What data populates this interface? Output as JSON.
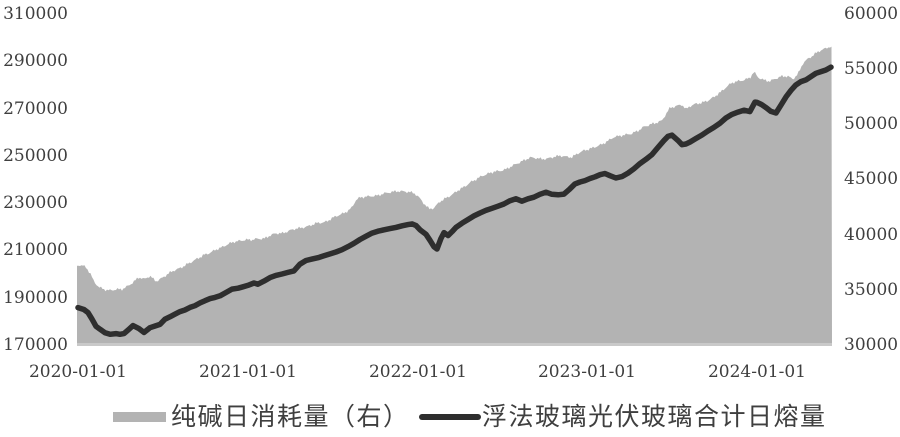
{
  "chart": {
    "background": "#ffffff",
    "area_color": "#b3b3b3",
    "line_color": "#2e2e2e",
    "text_color": "#3f3f3f",
    "baseline_color": "#c9c9c9"
  },
  "chart_data": {
    "type": "area",
    "subtype": "dual-axis area + line combo",
    "title": "",
    "grid": "off",
    "legend_position": "bottom",
    "x_axis": {
      "tick_labels": [
        "2020-01-01",
        "2021-01-01",
        "2022-01-01",
        "2023-01-01",
        "2024-01-01"
      ],
      "unit": "t = years since 2020-01-01, data span t=0 to t=4.44 (mid-2024)"
    },
    "y_left": {
      "min": 170000,
      "max": 310000,
      "step": 20000,
      "tick_labels": [
        "310000",
        "290000",
        "270000",
        "250000",
        "230000",
        "210000",
        "190000",
        "170000"
      ]
    },
    "y_right": {
      "min": 30000,
      "max": 60000,
      "step": 5000,
      "tick_labels": [
        "60000",
        "55000",
        "50000",
        "45000",
        "40000",
        "35000",
        "30000"
      ]
    },
    "legend": [
      {
        "label": "纯碱日消耗量（右）",
        "type": "area",
        "color": "#b3b3b3"
      },
      {
        "label": "浮法玻璃光伏玻璃合计日熔量",
        "type": "line",
        "color": "#2e2e2e"
      }
    ],
    "series": [
      {
        "name": "纯碱日消耗量（右）",
        "axis": "right",
        "type": "area",
        "points": [
          [
            -0.006,
            37100
          ],
          [
            0.024,
            37100
          ],
          [
            0.047,
            36900
          ],
          [
            0.071,
            36400
          ],
          [
            0.094,
            35600
          ],
          [
            0.124,
            35100
          ],
          [
            0.153,
            34900
          ],
          [
            0.189,
            34800
          ],
          [
            0.224,
            34900
          ],
          [
            0.259,
            34900
          ],
          [
            0.295,
            35200
          ],
          [
            0.33,
            35600
          ],
          [
            0.359,
            36000
          ],
          [
            0.389,
            35800
          ],
          [
            0.424,
            36100
          ],
          [
            0.459,
            35600
          ],
          [
            0.495,
            35900
          ],
          [
            0.53,
            36300
          ],
          [
            0.566,
            36600
          ],
          [
            0.601,
            36800
          ],
          [
            0.636,
            37100
          ],
          [
            0.672,
            37400
          ],
          [
            0.707,
            37700
          ],
          [
            0.742,
            38000
          ],
          [
            0.778,
            38200
          ],
          [
            0.813,
            38500
          ],
          [
            0.848,
            38700
          ],
          [
            0.884,
            39000
          ],
          [
            0.919,
            39200
          ],
          [
            0.954,
            39300
          ],
          [
            0.99,
            39400
          ],
          [
            1.025,
            39400
          ],
          [
            1.06,
            39500
          ],
          [
            1.096,
            39500
          ],
          [
            1.131,
            39800
          ],
          [
            1.166,
            40000
          ],
          [
            1.202,
            40000
          ],
          [
            1.237,
            40200
          ],
          [
            1.272,
            40400
          ],
          [
            1.308,
            40500
          ],
          [
            1.343,
            40600
          ],
          [
            1.378,
            40800
          ],
          [
            1.414,
            41000
          ],
          [
            1.449,
            41000
          ],
          [
            1.485,
            41300
          ],
          [
            1.52,
            41600
          ],
          [
            1.555,
            41800
          ],
          [
            1.591,
            42100
          ],
          [
            1.614,
            42400
          ],
          [
            1.638,
            43100
          ],
          [
            1.661,
            43300
          ],
          [
            1.697,
            43400
          ],
          [
            1.732,
            43450
          ],
          [
            1.767,
            43500
          ],
          [
            1.803,
            43700
          ],
          [
            1.838,
            43800
          ],
          [
            1.873,
            43900
          ],
          [
            1.909,
            43900
          ],
          [
            1.944,
            43850
          ],
          [
            1.979,
            43750
          ],
          [
            2.003,
            43450
          ],
          [
            2.038,
            42800
          ],
          [
            2.068,
            42300
          ],
          [
            2.097,
            42400
          ],
          [
            2.133,
            43000
          ],
          [
            2.168,
            43300
          ],
          [
            2.203,
            43600
          ],
          [
            2.239,
            44000
          ],
          [
            2.274,
            44300
          ],
          [
            2.309,
            44700
          ],
          [
            2.345,
            45000
          ],
          [
            2.38,
            45300
          ],
          [
            2.415,
            45500
          ],
          [
            2.451,
            45700
          ],
          [
            2.486,
            45750
          ],
          [
            2.521,
            45900
          ],
          [
            2.557,
            46200
          ],
          [
            2.592,
            46450
          ],
          [
            2.627,
            46700
          ],
          [
            2.663,
            46950
          ],
          [
            2.698,
            46900
          ],
          [
            2.733,
            46800
          ],
          [
            2.769,
            46850
          ],
          [
            2.804,
            47000
          ],
          [
            2.839,
            47100
          ],
          [
            2.875,
            47000
          ],
          [
            2.91,
            46950
          ],
          [
            2.945,
            47300
          ],
          [
            2.981,
            47550
          ],
          [
            3.016,
            47700
          ],
          [
            3.052,
            47900
          ],
          [
            3.087,
            48100
          ],
          [
            3.122,
            48400
          ],
          [
            3.158,
            48750
          ],
          [
            3.193,
            48850
          ],
          [
            3.228,
            48950
          ],
          [
            3.264,
            49050
          ],
          [
            3.299,
            49300
          ],
          [
            3.334,
            49650
          ],
          [
            3.37,
            49850
          ],
          [
            3.405,
            50000
          ],
          [
            3.44,
            50200
          ],
          [
            3.464,
            50800
          ],
          [
            3.487,
            51350
          ],
          [
            3.523,
            51500
          ],
          [
            3.558,
            51640
          ],
          [
            3.581,
            51200
          ],
          [
            3.605,
            51500
          ],
          [
            3.64,
            51700
          ],
          [
            3.676,
            51800
          ],
          [
            3.711,
            52000
          ],
          [
            3.746,
            52300
          ],
          [
            3.77,
            52600
          ],
          [
            3.782,
            52700
          ],
          [
            3.817,
            53200
          ],
          [
            3.852,
            53600
          ],
          [
            3.888,
            53750
          ],
          [
            3.923,
            53850
          ],
          [
            3.958,
            54050
          ],
          [
            3.982,
            54600
          ],
          [
            4.006,
            54100
          ],
          [
            4.041,
            53850
          ],
          [
            4.076,
            53750
          ],
          [
            4.112,
            54000
          ],
          [
            4.147,
            54200
          ],
          [
            4.182,
            54200
          ],
          [
            4.212,
            53950
          ],
          [
            4.241,
            54400
          ],
          [
            4.271,
            55400
          ],
          [
            4.3,
            55800
          ],
          [
            4.33,
            56100
          ],
          [
            4.359,
            56450
          ],
          [
            4.389,
            56650
          ],
          [
            4.418,
            56850
          ],
          [
            4.442,
            56950
          ]
        ]
      },
      {
        "name": "浮法玻璃光伏玻璃合计日熔量",
        "axis": "left",
        "type": "line",
        "points": [
          [
            0.0,
            185400
          ],
          [
            0.035,
            184600
          ],
          [
            0.059,
            183300
          ],
          [
            0.082,
            180600
          ],
          [
            0.106,
            177500
          ],
          [
            0.13,
            176200
          ],
          [
            0.159,
            174800
          ],
          [
            0.189,
            174100
          ],
          [
            0.224,
            174400
          ],
          [
            0.247,
            174100
          ],
          [
            0.271,
            174400
          ],
          [
            0.3,
            176200
          ],
          [
            0.324,
            177800
          ],
          [
            0.359,
            176500
          ],
          [
            0.389,
            174900
          ],
          [
            0.424,
            176900
          ],
          [
            0.454,
            177600
          ],
          [
            0.483,
            178300
          ],
          [
            0.512,
            180500
          ],
          [
            0.542,
            181500
          ],
          [
            0.571,
            182600
          ],
          [
            0.601,
            183700
          ],
          [
            0.63,
            184400
          ],
          [
            0.66,
            185500
          ],
          [
            0.689,
            186200
          ],
          [
            0.719,
            187400
          ],
          [
            0.748,
            188300
          ],
          [
            0.778,
            189200
          ],
          [
            0.807,
            189700
          ],
          [
            0.837,
            190400
          ],
          [
            0.872,
            191800
          ],
          [
            0.907,
            193200
          ],
          [
            0.943,
            193600
          ],
          [
            0.972,
            194200
          ],
          [
            1.0,
            194800
          ],
          [
            1.037,
            195800
          ],
          [
            1.06,
            195300
          ],
          [
            1.096,
            196600
          ],
          [
            1.131,
            198100
          ],
          [
            1.166,
            199000
          ],
          [
            1.202,
            199600
          ],
          [
            1.237,
            200300
          ],
          [
            1.272,
            200900
          ],
          [
            1.308,
            203800
          ],
          [
            1.343,
            205300
          ],
          [
            1.378,
            205900
          ],
          [
            1.414,
            206500
          ],
          [
            1.449,
            207300
          ],
          [
            1.485,
            208100
          ],
          [
            1.52,
            208900
          ],
          [
            1.555,
            209900
          ],
          [
            1.591,
            211200
          ],
          [
            1.626,
            212600
          ],
          [
            1.661,
            214200
          ],
          [
            1.697,
            215600
          ],
          [
            1.732,
            216900
          ],
          [
            1.767,
            217700
          ],
          [
            1.803,
            218300
          ],
          [
            1.838,
            218800
          ],
          [
            1.873,
            219300
          ],
          [
            1.909,
            220000
          ],
          [
            1.944,
            220500
          ],
          [
            1.968,
            220800
          ],
          [
            1.991,
            220100
          ],
          [
            2.015,
            218300
          ],
          [
            2.05,
            216400
          ],
          [
            2.073,
            213900
          ],
          [
            2.097,
            211100
          ],
          [
            2.115,
            210200
          ],
          [
            2.138,
            214600
          ],
          [
            2.156,
            217100
          ],
          [
            2.18,
            215900
          ],
          [
            2.203,
            217500
          ],
          [
            2.227,
            219300
          ],
          [
            2.262,
            221100
          ],
          [
            2.297,
            222600
          ],
          [
            2.333,
            224200
          ],
          [
            2.368,
            225400
          ],
          [
            2.403,
            226500
          ],
          [
            2.439,
            227400
          ],
          [
            2.474,
            228300
          ],
          [
            2.509,
            229200
          ],
          [
            2.545,
            230600
          ],
          [
            2.58,
            231400
          ],
          [
            2.615,
            230400
          ],
          [
            2.651,
            231400
          ],
          [
            2.686,
            232100
          ],
          [
            2.721,
            233300
          ],
          [
            2.757,
            234200
          ],
          [
            2.792,
            233300
          ],
          [
            2.828,
            233100
          ],
          [
            2.863,
            233400
          ],
          [
            2.898,
            235600
          ],
          [
            2.928,
            237700
          ],
          [
            2.957,
            238500
          ],
          [
            2.987,
            239100
          ],
          [
            3.016,
            240000
          ],
          [
            3.046,
            240700
          ],
          [
            3.075,
            241600
          ],
          [
            3.104,
            242100
          ],
          [
            3.134,
            241200
          ],
          [
            3.169,
            240200
          ],
          [
            3.204,
            240800
          ],
          [
            3.24,
            242300
          ],
          [
            3.275,
            244100
          ],
          [
            3.31,
            246300
          ],
          [
            3.346,
            248100
          ],
          [
            3.381,
            250100
          ],
          [
            3.416,
            253100
          ],
          [
            3.452,
            256100
          ],
          [
            3.475,
            257800
          ],
          [
            3.499,
            258300
          ],
          [
            3.534,
            256100
          ],
          [
            3.558,
            254300
          ],
          [
            3.581,
            254600
          ],
          [
            3.605,
            255400
          ],
          [
            3.64,
            256900
          ],
          [
            3.676,
            258400
          ],
          [
            3.711,
            260100
          ],
          [
            3.746,
            261600
          ],
          [
            3.782,
            263400
          ],
          [
            3.817,
            265600
          ],
          [
            3.852,
            267100
          ],
          [
            3.888,
            268100
          ],
          [
            3.923,
            268900
          ],
          [
            3.958,
            268300
          ],
          [
            3.988,
            272300
          ],
          [
            4.0,
            272200
          ],
          [
            4.029,
            271200
          ],
          [
            4.053,
            270000
          ],
          [
            4.082,
            268400
          ],
          [
            4.112,
            267700
          ],
          [
            4.141,
            271000
          ],
          [
            4.171,
            274500
          ],
          [
            4.2,
            277300
          ],
          [
            4.229,
            279600
          ],
          [
            4.259,
            281000
          ],
          [
            4.288,
            281700
          ],
          [
            4.318,
            283100
          ],
          [
            4.347,
            284500
          ],
          [
            4.377,
            285200
          ],
          [
            4.406,
            285900
          ],
          [
            4.436,
            287100
          ]
        ]
      }
    ]
  }
}
